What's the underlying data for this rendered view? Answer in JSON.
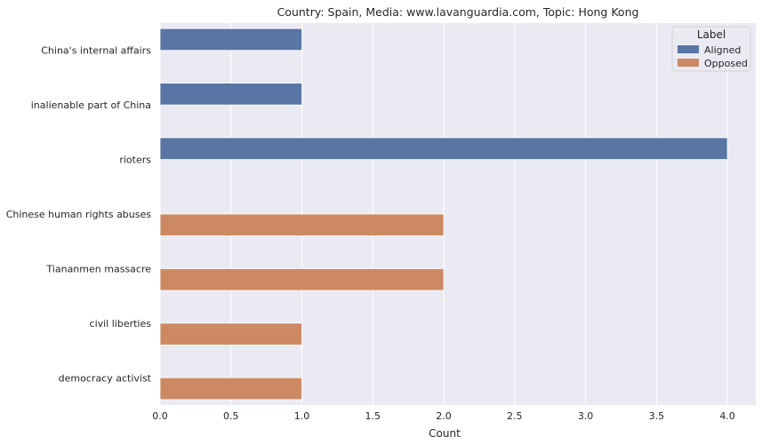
{
  "chart_data": {
    "type": "bar",
    "orientation": "horizontal",
    "title": "Country: Spain, Media: www.lavanguardia.com, Topic: Hong Kong",
    "xlabel": "Count",
    "ylabel": "",
    "xlim": [
      0,
      4.2
    ],
    "xticks": [
      "0.0",
      "0.5",
      "1.0",
      "1.5",
      "2.0",
      "2.5",
      "3.0",
      "3.5",
      "4.0"
    ],
    "grid": true,
    "categories": [
      "China's internal affairs",
      "inalienable part of China",
      "rioters",
      "Chinese human rights abuses",
      "Tiananmen massacre",
      "civil liberties",
      "democracy activist"
    ],
    "series": [
      {
        "name": "Aligned",
        "color": "#5875a4",
        "values": [
          1,
          1,
          4,
          0,
          0,
          0,
          0
        ]
      },
      {
        "name": "Opposed",
        "color": "#cc8963",
        "values": [
          0,
          0,
          0,
          2,
          2,
          1,
          1
        ]
      }
    ],
    "legend": {
      "title": "Label",
      "placement": "top-right"
    },
    "colors": {
      "plot_background": "#eaeaf2",
      "grid": "#ffffff"
    }
  }
}
